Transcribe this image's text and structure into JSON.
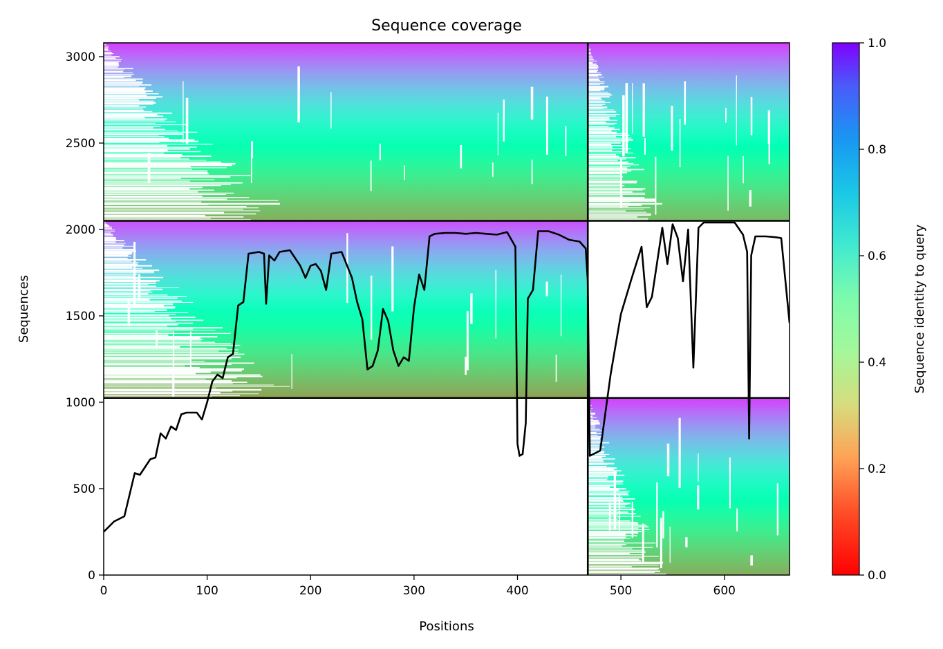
{
  "chart_data": {
    "type": "heatmap",
    "title": "Sequence coverage",
    "xlabel": "Positions",
    "ylabel": "Sequences",
    "xlim": [
      0,
      663
    ],
    "ylim": [
      0,
      3080
    ],
    "x_ticks": [
      0,
      100,
      200,
      300,
      400,
      500,
      600
    ],
    "y_ticks": [
      0,
      500,
      1000,
      1500,
      2000,
      2500,
      3000
    ],
    "colorbar": {
      "label": "Sequence identity to query",
      "range": [
        0,
        1
      ],
      "ticks": [
        0.0,
        0.2,
        0.4,
        0.6,
        0.8,
        1.0
      ],
      "tick_labels": [
        "0.0",
        "0.2",
        "0.4",
        "0.6",
        "0.8",
        "1.0"
      ],
      "colormap": "rainbow_r"
    },
    "block_boundaries": {
      "x": [
        468
      ],
      "y": [
        1025,
        2050
      ]
    },
    "blocks": [
      {
        "x_range": [
          0,
          468
        ],
        "y_range": [
          2050,
          3080
        ],
        "identity_bottom": 0.24,
        "identity_top": 0.92,
        "coverage_start_min": 0
      },
      {
        "x_range": [
          468,
          663
        ],
        "y_range": [
          2050,
          3080
        ],
        "identity_bottom": 0.26,
        "identity_top": 0.92,
        "coverage_start_min": 468
      },
      {
        "x_range": [
          0,
          468
        ],
        "y_range": [
          1025,
          2050
        ],
        "identity_bottom": 0.22,
        "identity_top": 0.9,
        "coverage_start_min": 0
      },
      {
        "x_range": [
          468,
          663
        ],
        "y_range": [
          0,
          1025
        ],
        "identity_bottom": 0.24,
        "identity_top": 0.92,
        "coverage_start_min": 468
      }
    ],
    "coverage_line": {
      "x": [
        0,
        10,
        20,
        30,
        35,
        45,
        50,
        55,
        60,
        65,
        70,
        75,
        80,
        90,
        95,
        100,
        105,
        110,
        115,
        120,
        125,
        130,
        135,
        140,
        150,
        155,
        157,
        160,
        165,
        170,
        180,
        190,
        195,
        200,
        205,
        210,
        215,
        220,
        230,
        240,
        245,
        250,
        255,
        260,
        265,
        270,
        275,
        280,
        285,
        290,
        295,
        300,
        305,
        310,
        315,
        320,
        330,
        340,
        350,
        360,
        370,
        380,
        390,
        398,
        400,
        402,
        405,
        408,
        410,
        415,
        420,
        430,
        440,
        450,
        460,
        466,
        468,
        470,
        480,
        490,
        500,
        510,
        520,
        525,
        530,
        540,
        545,
        550,
        555,
        560,
        565,
        570,
        575,
        580,
        590,
        600,
        610,
        618,
        622,
        624,
        626,
        630,
        640,
        650,
        655,
        663
      ],
      "y": [
        250,
        310,
        340,
        590,
        580,
        670,
        680,
        820,
        790,
        860,
        840,
        930,
        940,
        940,
        900,
        1000,
        1120,
        1160,
        1140,
        1260,
        1280,
        1560,
        1580,
        1860,
        1870,
        1860,
        1570,
        1850,
        1820,
        1870,
        1880,
        1790,
        1720,
        1790,
        1800,
        1760,
        1650,
        1860,
        1870,
        1720,
        1580,
        1480,
        1190,
        1210,
        1300,
        1540,
        1470,
        1300,
        1210,
        1260,
        1240,
        1550,
        1740,
        1650,
        1960,
        1975,
        1980,
        1980,
        1975,
        1980,
        1975,
        1970,
        1985,
        1900,
        760,
        690,
        700,
        880,
        1600,
        1650,
        1990,
        1990,
        1970,
        1940,
        1930,
        1890,
        1700,
        690,
        720,
        1160,
        1510,
        1710,
        1900,
        1550,
        1610,
        2010,
        1800,
        2030,
        1950,
        1700,
        2000,
        1200,
        2010,
        2040,
        2040,
        2040,
        2040,
        1970,
        1870,
        790,
        1850,
        1960,
        1960,
        1955,
        1950,
        1460
      ]
    }
  }
}
